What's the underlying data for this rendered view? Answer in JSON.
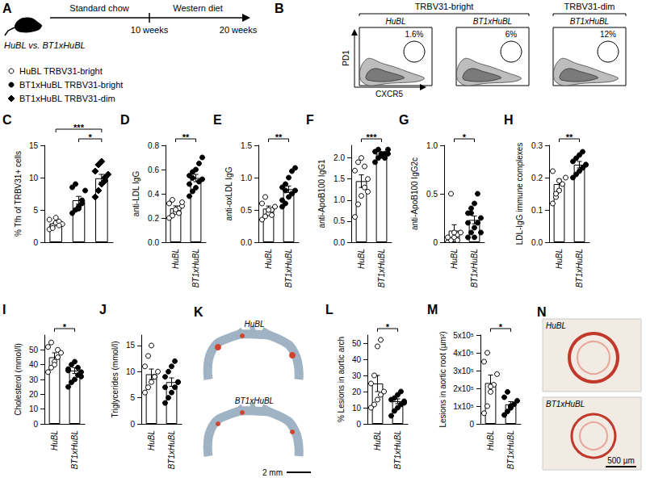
{
  "panel_A": {
    "letter": "A",
    "groups": "HuBL vs. BT1xHuBL",
    "phases": [
      "Standard chow",
      "Western diet"
    ],
    "timepoints": [
      "10 weeks",
      "20 weeks"
    ]
  },
  "panel_B": {
    "letter": "B",
    "populations": [
      {
        "label": "TRBV31-bright",
        "plots": [
          {
            "strain": "HuBL",
            "gate": "1.6%"
          },
          {
            "strain": "BT1xHuBL",
            "gate": "6%"
          }
        ]
      },
      {
        "label": "TRBV31-dim",
        "plots": [
          {
            "strain": "BT1xHuBL",
            "gate": "12%"
          }
        ]
      }
    ],
    "y_axis": "PD1",
    "x_axis": "CXCR5"
  },
  "panel_K": {
    "letter": "K",
    "images": [
      "HuBL",
      "BT1xHuBL"
    ],
    "scale_bar": "2 mm"
  },
  "panel_N": {
    "letter": "N",
    "images": [
      "HuBL",
      "BT1xHuBL"
    ],
    "scale_bar": "500 µm"
  },
  "chart_data": [
    {
      "title": "C",
      "type": "bar",
      "y_label": "% Tfh of TRBV31+ cells",
      "categories": [
        null,
        null,
        null
      ],
      "ylim": [
        0,
        15
      ],
      "yticks": [
        0,
        5,
        10,
        15
      ],
      "series": [
        {
          "name": "HuBL TRBV31-bright",
          "marker": "circle",
          "color": "#ffffff",
          "values": [
            2.9,
            null,
            null
          ],
          "errors": [
            0.2,
            null,
            null
          ],
          "points": [
            2.0,
            2.5,
            3.0,
            3.2,
            2.8,
            3.5,
            2.2,
            3.8,
            2.6
          ]
        },
        {
          "name": "BT1xHuBL TRBV31-bright",
          "marker": "circle",
          "color": "#000000",
          "values": [
            null,
            6.5,
            null
          ],
          "errors": [
            null,
            0.6,
            null
          ],
          "points": [
            4.5,
            5.0,
            5.5,
            6.0,
            8.0,
            8.5,
            9.0,
            5.2,
            6.5
          ]
        },
        {
          "name": "BT1xHuBL TRBV31-dim",
          "marker": "diamond",
          "color": "#000000",
          "values": [
            null,
            null,
            9.9
          ],
          "errors": [
            null,
            null,
            0.6
          ],
          "points": [
            7.0,
            8.0,
            9.0,
            10.0,
            10.5,
            11.0,
            12.0,
            12.5,
            9.5
          ]
        }
      ],
      "annotations": [
        {
          "text": "***",
          "from": 0,
          "to": 2
        },
        {
          "text": "*",
          "from": 1,
          "to": 2
        }
      ]
    },
    {
      "title": "D",
      "type": "bar",
      "y_label": "anti-LDL IgG",
      "categories": [
        "HuBL",
        "BT1xHuBL"
      ],
      "marker": "circle",
      "colors": [
        "#ffffff",
        "#000000"
      ],
      "values": [
        0.28,
        0.53
      ],
      "errors": [
        0.02,
        0.03
      ],
      "points": [
        [
          0.2,
          0.22,
          0.25,
          0.28,
          0.3,
          0.32,
          0.35,
          0.27,
          0.24,
          0.33
        ],
        [
          0.38,
          0.42,
          0.45,
          0.5,
          0.52,
          0.55,
          0.58,
          0.6,
          0.65,
          0.7,
          0.48,
          0.53
        ]
      ],
      "ylim": [
        0,
        0.8
      ],
      "yticks": [
        {
          "value": 0,
          "label": "0.0"
        },
        0.2,
        0.4,
        0.6,
        0.8
      ],
      "annotations": [
        {
          "text": "**",
          "from": 0,
          "to": 1
        }
      ]
    },
    {
      "title": "E",
      "type": "bar",
      "y_label": "anti-oxLDL IgG",
      "categories": [
        "HuBL",
        "BT1xHuBL"
      ],
      "marker": "circle",
      "colors": [
        "#ffffff",
        "#000000"
      ],
      "values": [
        0.52,
        0.82
      ],
      "errors": [
        0.04,
        0.05
      ],
      "points": [
        [
          0.35,
          0.4,
          0.45,
          0.5,
          0.55,
          0.6,
          0.7,
          0.5,
          0.42
        ],
        [
          0.55,
          0.6,
          0.7,
          0.75,
          0.8,
          0.85,
          0.9,
          1.0,
          1.1,
          1.15,
          0.65,
          0.8
        ]
      ],
      "ylim": [
        0,
        1.5
      ],
      "yticks": [
        {
          "value": 0,
          "label": "0.0"
        },
        0.5,
        {
          "value": 1,
          "label": "1.0"
        },
        1.5
      ],
      "annotations": [
        {
          "text": "**",
          "from": 0,
          "to": 1
        }
      ]
    },
    {
      "title": "F",
      "type": "bar",
      "y_label": "anti-ApoB100 IgG1",
      "categories": [
        "HuBL",
        "BT1xHuBL"
      ],
      "marker": "circle",
      "colors": [
        "#ffffff",
        "#000000"
      ],
      "values": [
        1.45,
        2.1
      ],
      "errors": [
        0.15,
        0.03
      ],
      "points": [
        [
          0.6,
          0.9,
          1.1,
          1.3,
          1.5,
          1.7,
          1.9,
          2.0,
          1.8,
          1.2
        ],
        [
          1.9,
          2.0,
          2.05,
          2.1,
          2.1,
          2.15,
          2.2,
          2.1,
          2.0,
          2.2
        ]
      ],
      "ylim": [
        0,
        2.3
      ],
      "yticks": [
        {
          "value": 0,
          "label": "0.0"
        },
        0.5,
        {
          "value": 1,
          "label": "1.0"
        },
        1.5,
        {
          "value": 2,
          "label": "2.0"
        }
      ],
      "annotations": [
        {
          "text": "***",
          "from": 0,
          "to": 1
        }
      ]
    },
    {
      "title": "G",
      "type": "bar",
      "y_label": "anti-ApoB100 IgG2c",
      "categories": [
        "HuBL",
        "BT1xHuBL"
      ],
      "marker": "circle",
      "colors": [
        "#ffffff",
        "#000000"
      ],
      "values": [
        0.12,
        0.23
      ],
      "errors": [
        0.06,
        0.04
      ],
      "points": [
        [
          0,
          0.02,
          0.05,
          0.08,
          0.1,
          0.05,
          0.5,
          0.1,
          0.02
        ],
        [
          0.05,
          0.1,
          0.15,
          0.2,
          0.25,
          0.3,
          0.35,
          0.4,
          0.5,
          0.1,
          0.2,
          0.3,
          0.05
        ]
      ],
      "ylim": [
        0,
        1
      ],
      "yticks": [
        0,
        0.5,
        {
          "value": 1,
          "label": "1.0"
        }
      ],
      "annotations": [
        {
          "text": "*",
          "from": 0,
          "to": 1
        }
      ]
    },
    {
      "title": "H",
      "type": "bar",
      "y_label": "LDL-IgG immune complexes",
      "categories": [
        "HuBL",
        "BT1xHuBL"
      ],
      "marker": "circle",
      "colors": [
        "#ffffff",
        "#000000"
      ],
      "values": [
        0.18,
        0.24
      ],
      "errors": [
        0.015,
        0.01
      ],
      "points": [
        [
          0.12,
          0.14,
          0.16,
          0.18,
          0.2,
          0.22,
          0.15,
          0.19
        ],
        [
          0.2,
          0.21,
          0.22,
          0.23,
          0.24,
          0.25,
          0.26,
          0.27,
          0.28,
          0.24
        ]
      ],
      "ylim": [
        0,
        0.3
      ],
      "yticks": [
        {
          "value": 0,
          "label": "0.0"
        },
        0.1,
        0.2,
        0.3
      ],
      "annotations": [
        {
          "text": "**",
          "from": 0,
          "to": 1
        }
      ]
    },
    {
      "title": "I",
      "type": "bar",
      "y_label": "Cholesterol (mmol/l)",
      "categories": [
        "HuBL",
        "BT1xHuBL"
      ],
      "marker": "circle",
      "colors": [
        "#ffffff",
        "#000000"
      ],
      "values": [
        45,
        36
      ],
      "errors": [
        3,
        2
      ],
      "points": [
        [
          35,
          38,
          42,
          45,
          48,
          52,
          55,
          40,
          50
        ],
        [
          25,
          28,
          30,
          33,
          35,
          37,
          40,
          42,
          38,
          32,
          36
        ]
      ],
      "ylim": [
        0,
        60
      ],
      "yticks": [
        0,
        10,
        20,
        30,
        40,
        50
      ],
      "annotations": [
        {
          "text": "*",
          "from": 0,
          "to": 1
        }
      ]
    },
    {
      "title": "J",
      "type": "bar",
      "y_label": "Triglycerides (mmol/l)",
      "categories": [
        "HuBL",
        "BT1xHuBL"
      ],
      "marker": "circle",
      "colors": [
        "#ffffff",
        "#000000"
      ],
      "values": [
        9.5,
        8
      ],
      "errors": [
        1,
        0.8
      ],
      "points": [
        [
          6,
          7,
          8,
          9,
          10,
          11,
          13,
          15,
          9
        ],
        [
          4,
          5,
          6,
          7,
          8,
          9,
          10,
          11,
          12,
          8,
          7
        ]
      ],
      "ylim": [
        0,
        17
      ],
      "yticks": [
        0,
        5,
        10,
        15
      ],
      "annotations": []
    },
    {
      "title": "L",
      "type": "bar",
      "y_label": "% Lesions in aortic arch",
      "categories": [
        "HuBL",
        "BT1xHuBL"
      ],
      "marker": "circle",
      "colors": [
        "#ffffff",
        "#000000"
      ],
      "values": [
        25,
        14
      ],
      "errors": [
        5,
        1.5
      ],
      "points": [
        [
          10,
          12,
          15,
          18,
          20,
          25,
          30,
          48,
          52
        ],
        [
          5,
          8,
          10,
          12,
          14,
          15,
          16,
          18,
          20,
          13
        ]
      ],
      "ylim": [
        0,
        55
      ],
      "yticks": [
        0,
        10,
        20,
        30,
        40,
        50
      ],
      "annotations": [
        {
          "text": "*",
          "from": 0,
          "to": 1
        }
      ]
    },
    {
      "title": "M",
      "type": "bar",
      "y_label": "Lesions in aortic root (µm²)",
      "categories": [
        "HuBL",
        "BT1xHuBL"
      ],
      "marker": "circle",
      "colors": [
        "#ffffff",
        "#000000"
      ],
      "values": [
        230000,
        110000
      ],
      "errors": [
        45000,
        15000
      ],
      "points": [
        [
          60000,
          100000,
          180000,
          220000,
          280000,
          350000,
          400000,
          210000
        ],
        [
          50000,
          70000,
          90000,
          110000,
          130000,
          150000,
          180000,
          100000
        ]
      ],
      "ylim": [
        0,
        500000
      ],
      "yticks": [
        0,
        {
          "value": 100000,
          "label": "1x10⁵"
        },
        {
          "value": 200000,
          "label": "2x10⁵"
        },
        {
          "value": 300000,
          "label": "3x10⁵"
        },
        {
          "value": 400000,
          "label": "4x10⁵"
        },
        {
          "value": 500000,
          "label": "5x10⁵"
        }
      ],
      "annotations": [
        {
          "text": "*",
          "from": 0,
          "to": 1
        }
      ]
    }
  ]
}
